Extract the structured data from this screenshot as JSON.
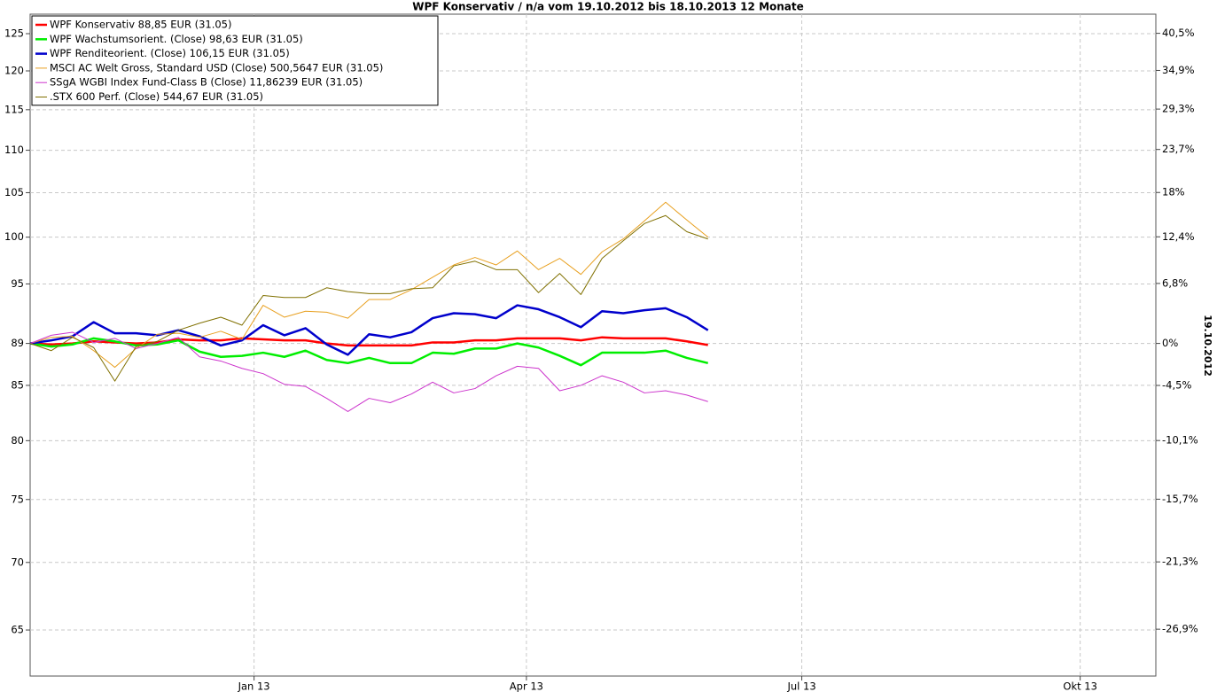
{
  "chart_data": {
    "type": "line",
    "title": "WPF Konservativ / n/a vom 19.10.2012 bis 18.10.2013 12 Monate",
    "y2_label": "19.10.2012",
    "x": [
      0,
      7,
      14,
      21,
      28,
      35,
      42,
      49,
      56,
      63,
      70,
      77,
      84,
      91,
      98,
      105,
      112,
      119,
      126,
      133,
      140,
      147,
      154,
      161,
      168,
      175,
      182,
      189,
      196,
      203,
      210,
      217,
      224
    ],
    "xlim": [
      0,
      372
    ],
    "xticks": [
      {
        "value": 74,
        "label": "Jan 13"
      },
      {
        "value": 164,
        "label": "Apr 13"
      },
      {
        "value": 255,
        "label": "Jul 13"
      },
      {
        "value": 347,
        "label": "Okt 13"
      }
    ],
    "ylim": [
      61.8,
      127.7
    ],
    "ylog": true,
    "yticks": [
      65,
      70,
      75,
      80,
      85,
      89,
      95,
      100,
      105,
      110,
      115,
      120,
      125
    ],
    "y2lim": [
      -30.56,
      43.48
    ],
    "y2log": true,
    "y2ticks": [
      {
        "value": 40.5,
        "label": "40,5%"
      },
      {
        "value": 34.9,
        "label": "34,9%"
      },
      {
        "value": 29.3,
        "label": "29,3%"
      },
      {
        "value": 23.7,
        "label": "23,7%"
      },
      {
        "value": 18,
        "label": "18%"
      },
      {
        "value": 12.4,
        "label": "12,4%"
      },
      {
        "value": 6.8,
        "label": "6,8%"
      },
      {
        "value": 0,
        "label": "0%"
      },
      {
        "value": -4.5,
        "label": "-4,5%"
      },
      {
        "value": -10.1,
        "label": "-10,1%"
      },
      {
        "value": -15.7,
        "label": "-15,7%"
      },
      {
        "value": -21.3,
        "label": "-21,3%"
      },
      {
        "value": -26.9,
        "label": "-26,9%"
      }
    ],
    "grid": true,
    "legend": "top-left",
    "series": [
      {
        "name": "WPF Konservativ 88,85 EUR (31.05)",
        "color": "#ff0000",
        "width": 2.5,
        "values": [
          89.0,
          88.9,
          89.0,
          89.2,
          89.1,
          89.0,
          89.1,
          89.4,
          89.3,
          89.3,
          89.5,
          89.4,
          89.3,
          89.3,
          89.0,
          88.8,
          88.8,
          88.8,
          88.8,
          89.1,
          89.1,
          89.3,
          89.3,
          89.5,
          89.5,
          89.5,
          89.3,
          89.6,
          89.5,
          89.5,
          89.5,
          89.2,
          88.85
        ]
      },
      {
        "name": "WPF Wachstumsorient. (Close) 98,63 EUR (31.05)",
        "color": "#00ee00",
        "width": 2.5,
        "values": [
          89.0,
          88.7,
          88.9,
          89.5,
          89.2,
          88.8,
          88.9,
          89.3,
          88.2,
          87.7,
          87.8,
          88.1,
          87.7,
          88.3,
          87.4,
          87.1,
          87.6,
          87.1,
          87.1,
          88.1,
          88.0,
          88.5,
          88.5,
          89.0,
          88.6,
          87.8,
          86.9,
          88.1,
          88.1,
          88.1,
          88.3,
          87.6,
          87.1
        ]
      },
      {
        "name": "WPF Renditeorient. (Close) 106,15 EUR (31.05)",
        "color": "#0000cc",
        "width": 2.5,
        "values": [
          89.0,
          89.3,
          89.7,
          91.1,
          90.0,
          90.0,
          89.8,
          90.3,
          89.7,
          88.8,
          89.3,
          90.8,
          89.8,
          90.5,
          88.9,
          87.9,
          89.9,
          89.6,
          90.1,
          91.5,
          92.0,
          91.9,
          91.5,
          92.8,
          92.4,
          91.6,
          90.6,
          92.2,
          92.0,
          92.3,
          92.5,
          91.6,
          90.3
        ]
      },
      {
        "name": "MSCI AC Welt Gross, Standard USD (Close) 500,5647 EUR (31.05)",
        "color": "#e8a020",
        "width": 1,
        "values": [
          89.0,
          89.6,
          89.7,
          88.3,
          86.7,
          88.5,
          89.9,
          90.0,
          89.6,
          90.2,
          89.4,
          92.8,
          91.6,
          92.2,
          92.1,
          91.5,
          93.4,
          93.4,
          94.4,
          95.7,
          97.0,
          97.8,
          97.0,
          98.5,
          96.5,
          97.7,
          96.0,
          98.4,
          99.8,
          101.8,
          103.9,
          101.9,
          100.0
        ]
      },
      {
        "name": "SSgA WGBI Index Fund-Class B (Close) 11,86239 EUR (31.05)",
        "color": "#cc33cc",
        "width": 1,
        "values": [
          89.0,
          89.8,
          90.1,
          89.1,
          89.5,
          88.5,
          89.0,
          89.6,
          87.7,
          87.3,
          86.6,
          86.1,
          85.1,
          84.9,
          83.8,
          82.6,
          83.8,
          83.4,
          84.2,
          85.3,
          84.3,
          84.7,
          85.9,
          86.8,
          86.6,
          84.5,
          85.0,
          85.9,
          85.3,
          84.3,
          84.5,
          84.1,
          83.5
        ]
      },
      {
        "name": ".STX 600 Perf. (Close) 544,67 EUR (31.05)",
        "color": "#807000",
        "width": 1,
        "values": [
          89.0,
          88.3,
          89.6,
          88.6,
          85.4,
          88.7,
          89.2,
          90.3,
          91.0,
          91.6,
          90.8,
          93.8,
          93.6,
          93.6,
          94.6,
          94.2,
          94.0,
          94.0,
          94.5,
          94.6,
          96.9,
          97.4,
          96.5,
          96.5,
          94.1,
          96.1,
          93.9,
          97.7,
          99.6,
          101.5,
          102.4,
          100.6,
          99.8
        ]
      }
    ]
  }
}
